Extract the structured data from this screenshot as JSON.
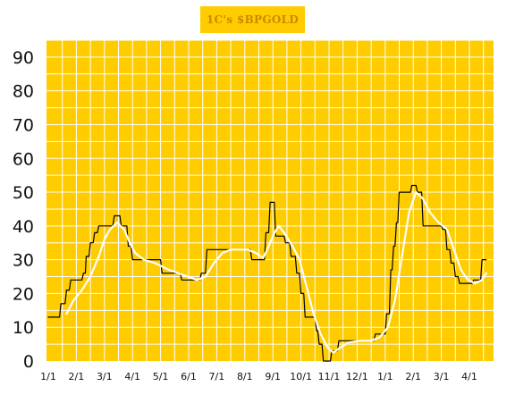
{
  "header": {
    "title": "1C's $BPGOLD"
  },
  "colors": {
    "panel": "#ffcc00",
    "grid": "#ffffff",
    "price": "#000000",
    "average": "#ffffff",
    "title_text": "#cc8800"
  },
  "chart_data": {
    "type": "line",
    "title": "1C's $BPGOLD",
    "xlabel": "",
    "ylabel": "",
    "ylim": [
      0,
      95
    ],
    "y_ticks": [
      "0",
      "10",
      "20",
      "30",
      "40",
      "50",
      "60",
      "70",
      "80",
      "90"
    ],
    "x_ticks": [
      "1/1",
      "2/1",
      "3/1",
      "4/1",
      "5/1",
      "6/1",
      "7/1",
      "8/1",
      "9/1",
      "10/1",
      "11/1",
      "12/1",
      "1/1",
      "2/1",
      "3/1",
      "4/1"
    ],
    "x_units": "months since first 1/1 tick",
    "grid": true,
    "series": [
      {
        "style": "step",
        "color": "#000000",
        "points": [
          [
            0,
            13
          ],
          [
            0.4,
            13
          ],
          [
            0.45,
            17
          ],
          [
            0.6,
            17
          ],
          [
            0.65,
            21
          ],
          [
            0.75,
            21
          ],
          [
            0.8,
            24
          ],
          [
            1.2,
            24
          ],
          [
            1.25,
            26
          ],
          [
            1.32,
            26
          ],
          [
            1.35,
            31
          ],
          [
            1.45,
            31
          ],
          [
            1.5,
            35
          ],
          [
            1.6,
            35
          ],
          [
            1.65,
            38
          ],
          [
            1.75,
            38
          ],
          [
            1.8,
            40
          ],
          [
            2.3,
            40
          ],
          [
            2.35,
            43
          ],
          [
            2.55,
            43
          ],
          [
            2.6,
            40
          ],
          [
            2.8,
            40
          ],
          [
            2.85,
            34
          ],
          [
            2.95,
            34
          ],
          [
            3.0,
            30
          ],
          [
            4.0,
            30
          ],
          [
            4.05,
            26
          ],
          [
            4.7,
            26
          ],
          [
            4.75,
            24
          ],
          [
            5.4,
            24
          ],
          [
            5.45,
            26
          ],
          [
            5.6,
            26
          ],
          [
            5.65,
            33
          ],
          [
            6.2,
            33
          ],
          [
            6.25,
            33
          ],
          [
            7.2,
            33
          ],
          [
            7.25,
            30
          ],
          [
            7.7,
            30
          ],
          [
            7.75,
            38
          ],
          [
            7.85,
            38
          ],
          [
            7.9,
            47
          ],
          [
            8.05,
            47
          ],
          [
            8.1,
            37
          ],
          [
            8.4,
            37
          ],
          [
            8.45,
            35
          ],
          [
            8.6,
            35
          ],
          [
            8.65,
            31
          ],
          [
            8.8,
            31
          ],
          [
            8.85,
            26
          ],
          [
            8.95,
            26
          ],
          [
            9.0,
            20
          ],
          [
            9.1,
            20
          ],
          [
            9.15,
            13
          ],
          [
            9.5,
            13
          ],
          [
            9.55,
            9
          ],
          [
            9.6,
            9
          ],
          [
            9.65,
            5
          ],
          [
            9.75,
            5
          ],
          [
            9.8,
            0
          ],
          [
            10.05,
            0
          ],
          [
            10.1,
            3
          ],
          [
            10.3,
            3
          ],
          [
            10.35,
            6
          ],
          [
            11.6,
            6
          ],
          [
            11.65,
            8
          ],
          [
            12.0,
            8
          ],
          [
            12.05,
            14
          ],
          [
            12.15,
            14
          ],
          [
            12.2,
            27
          ],
          [
            12.25,
            27
          ],
          [
            12.3,
            34
          ],
          [
            12.35,
            34
          ],
          [
            12.4,
            41
          ],
          [
            12.45,
            41
          ],
          [
            12.5,
            50
          ],
          [
            12.9,
            50
          ],
          [
            12.95,
            52
          ],
          [
            13.1,
            52
          ],
          [
            13.15,
            50
          ],
          [
            13.3,
            50
          ],
          [
            13.35,
            40
          ],
          [
            14.0,
            40
          ],
          [
            14.05,
            39
          ],
          [
            14.15,
            39
          ],
          [
            14.2,
            33
          ],
          [
            14.3,
            33
          ],
          [
            14.35,
            29
          ],
          [
            14.45,
            29
          ],
          [
            14.5,
            25
          ],
          [
            14.6,
            25
          ],
          [
            14.65,
            23
          ],
          [
            15.1,
            23
          ],
          [
            15.15,
            24
          ],
          [
            15.4,
            24
          ],
          [
            15.45,
            30
          ],
          [
            15.6,
            30
          ]
        ]
      },
      {
        "style": "smooth",
        "color": "#ffffff",
        "points": [
          [
            0.65,
            14
          ],
          [
            0.9,
            18
          ],
          [
            1.2,
            21
          ],
          [
            1.5,
            25
          ],
          [
            1.8,
            31
          ],
          [
            2.0,
            36
          ],
          [
            2.2,
            39
          ],
          [
            2.45,
            41
          ],
          [
            2.7,
            39
          ],
          [
            2.9,
            35
          ],
          [
            3.1,
            32
          ],
          [
            3.4,
            30
          ],
          [
            3.8,
            29
          ],
          [
            4.3,
            27
          ],
          [
            4.8,
            25.5
          ],
          [
            5.3,
            24
          ],
          [
            5.6,
            25
          ],
          [
            5.9,
            29
          ],
          [
            6.2,
            32
          ],
          [
            6.5,
            33
          ],
          [
            6.8,
            33
          ],
          [
            7.1,
            33
          ],
          [
            7.4,
            32
          ],
          [
            7.65,
            30.5
          ],
          [
            7.8,
            33
          ],
          [
            8.0,
            37
          ],
          [
            8.2,
            40
          ],
          [
            8.4,
            38
          ],
          [
            8.7,
            34
          ],
          [
            8.95,
            30
          ],
          [
            9.2,
            22
          ],
          [
            9.45,
            14
          ],
          [
            9.7,
            8
          ],
          [
            9.95,
            4
          ],
          [
            10.15,
            2.5
          ],
          [
            10.4,
            4
          ],
          [
            10.7,
            5.5
          ],
          [
            11.1,
            6
          ],
          [
            11.5,
            6
          ],
          [
            11.8,
            7
          ],
          [
            12.1,
            10
          ],
          [
            12.35,
            18
          ],
          [
            12.6,
            31
          ],
          [
            12.85,
            44
          ],
          [
            13.1,
            50
          ],
          [
            13.35,
            48
          ],
          [
            13.6,
            44
          ],
          [
            13.9,
            41
          ],
          [
            14.2,
            39
          ],
          [
            14.45,
            33
          ],
          [
            14.7,
            27
          ],
          [
            14.95,
            24
          ],
          [
            15.2,
            23
          ],
          [
            15.45,
            24
          ],
          [
            15.6,
            26
          ]
        ]
      }
    ]
  }
}
